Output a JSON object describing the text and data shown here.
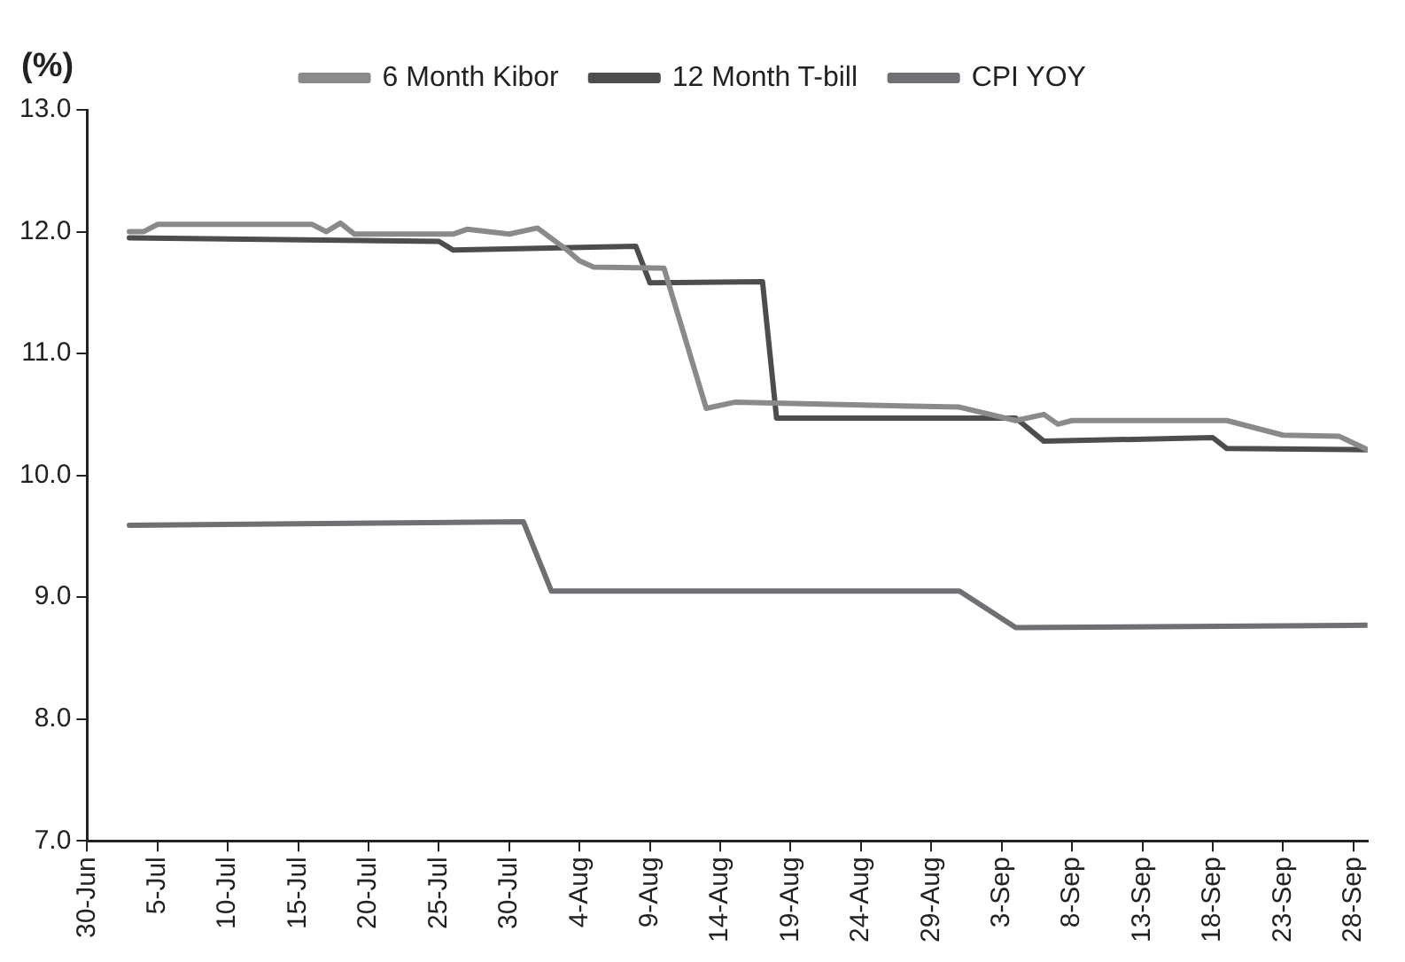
{
  "chart_data": {
    "type": "line",
    "ylabel": "(%)",
    "legend": "top",
    "grid": false,
    "marker": "none",
    "line_style": "solid",
    "xlim": [
      "--06-30",
      "--09-29"
    ],
    "xticks": [
      {
        "value": "--06-30",
        "label": "30-Jun"
      },
      {
        "value": "--07-05",
        "label": "5-Jul"
      },
      {
        "value": "--07-10",
        "label": "10-Jul"
      },
      {
        "value": "--07-15",
        "label": "15-Jul"
      },
      {
        "value": "--07-20",
        "label": "20-Jul"
      },
      {
        "value": "--07-25",
        "label": "25-Jul"
      },
      {
        "value": "--07-30",
        "label": "30-Jul"
      },
      {
        "value": "--08-04",
        "label": "4-Aug"
      },
      {
        "value": "--08-09",
        "label": "9-Aug"
      },
      {
        "value": "--08-14",
        "label": "14-Aug"
      },
      {
        "value": "--08-19",
        "label": "19-Aug"
      },
      {
        "value": "--08-24",
        "label": "24-Aug"
      },
      {
        "value": "--08-29",
        "label": "29-Aug"
      },
      {
        "value": "--09-03",
        "label": "3-Sep"
      },
      {
        "value": "--09-08",
        "label": "8-Sep"
      },
      {
        "value": "--09-13",
        "label": "13-Sep"
      },
      {
        "value": "--09-18",
        "label": "18-Sep"
      },
      {
        "value": "--09-23",
        "label": "23-Sep"
      },
      {
        "value": "--09-28",
        "label": "28-Sep"
      }
    ],
    "ylim": [
      7,
      13
    ],
    "yticks": [
      {
        "value": 7,
        "label": "7.0"
      },
      {
        "value": 8,
        "label": "8.0"
      },
      {
        "value": 9,
        "label": "9.0"
      },
      {
        "value": 10,
        "label": "10.0"
      },
      {
        "value": 11,
        "label": "11.0"
      },
      {
        "value": 12,
        "label": "12.0"
      },
      {
        "value": 13,
        "label": "13.0"
      }
    ],
    "series": [
      {
        "name": "6 Month Kibor",
        "color": "#8a8a8a",
        "x": [
          "--07-03",
          "--07-04",
          "--07-05",
          "--07-16",
          "--07-17",
          "--07-18",
          "--07-19",
          "--07-26",
          "--07-27",
          "--07-30",
          "--08-01",
          "--08-03",
          "--08-04",
          "--08-05",
          "--08-10",
          "--08-13",
          "--08-15",
          "--08-31",
          "--09-04",
          "--09-06",
          "--09-07",
          "--09-08",
          "--09-19",
          "--09-23",
          "--09-27",
          "--09-29"
        ],
        "values": [
          12.0,
          12.0,
          12.06,
          12.06,
          12.0,
          12.07,
          11.98,
          11.98,
          12.02,
          11.98,
          12.03,
          11.86,
          11.76,
          11.71,
          11.7,
          10.55,
          10.6,
          10.56,
          10.45,
          10.5,
          10.42,
          10.45,
          10.45,
          10.33,
          10.32,
          10.21
        ]
      },
      {
        "name": "12 Month T-bill",
        "color": "#4d4d4d",
        "x": [
          "--07-03",
          "--07-25",
          "--07-26",
          "--08-08",
          "--08-09",
          "--08-17",
          "--08-18",
          "--09-04",
          "--09-06",
          "--09-18",
          "--09-19",
          "--09-29"
        ],
        "values": [
          11.95,
          11.92,
          11.85,
          11.88,
          11.58,
          11.59,
          10.47,
          10.47,
          10.28,
          10.31,
          10.22,
          10.21
        ]
      },
      {
        "name": "CPI YOY",
        "color": "#6f7073",
        "x": [
          "--07-03",
          "--07-31",
          "--08-02",
          "--08-31",
          "--09-04",
          "--09-29"
        ],
        "values": [
          9.59,
          9.62,
          9.05,
          9.05,
          8.75,
          8.77
        ]
      }
    ]
  }
}
